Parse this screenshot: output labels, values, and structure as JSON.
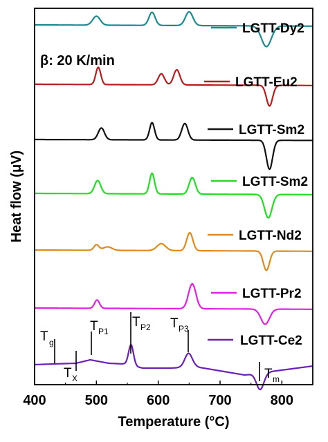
{
  "chart_data": {
    "type": "line",
    "title": "",
    "xlabel": "Temperature (°C)",
    "ylabel": "Heat flow (μV)",
    "xlim": [
      400,
      850
    ],
    "x_ticks": [
      400,
      500,
      600,
      700,
      800
    ],
    "y_ticks_shown": false,
    "grid": false,
    "legend": "inline labels at right of each curve",
    "annotation": "β: 20 K/min",
    "curve_markers": [
      {
        "label": "T",
        "sub": "g",
        "x": 432
      },
      {
        "label": "T",
        "sub": "X",
        "x": 467
      },
      {
        "label": "T",
        "sub": "P1",
        "x": 490
      },
      {
        "label": "T",
        "sub": "P2",
        "x": 555
      },
      {
        "label": "T",
        "sub": "P3",
        "x": 648
      },
      {
        "label": "T",
        "sub": "m",
        "x": 763
      }
    ],
    "series": [
      {
        "name": "LGTT-Dy2",
        "color": "#1a8a8c",
        "events": [
          {
            "x": 500,
            "h": 13,
            "w": 6
          },
          {
            "x": 590,
            "h": 19,
            "w": 5
          },
          {
            "x": 650,
            "h": 20,
            "w": 6
          },
          {
            "x": 775,
            "h": -30,
            "w": 8
          }
        ]
      },
      {
        "name": "LGTT-Eu2",
        "color": "#b81c1c",
        "events": [
          {
            "x": 503,
            "h": 25,
            "w": 4
          },
          {
            "x": 605,
            "h": 16,
            "w": 5
          },
          {
            "x": 630,
            "h": 22,
            "w": 5
          },
          {
            "x": 780,
            "h": -30,
            "w": 5
          }
        ]
      },
      {
        "name": "LGTT-Sm2",
        "color": "#111111",
        "events": [
          {
            "x": 508,
            "h": 17,
            "w": 5
          },
          {
            "x": 590,
            "h": 25,
            "w": 4
          },
          {
            "x": 643,
            "h": 24,
            "w": 5
          },
          {
            "x": 780,
            "h": -42,
            "w": 5
          }
        ]
      },
      {
        "name": "LGTT-Sm2",
        "color": "#22dd22",
        "events": [
          {
            "x": 502,
            "h": 19,
            "w": 5
          },
          {
            "x": 590,
            "h": 30,
            "w": 4
          },
          {
            "x": 655,
            "h": 24,
            "w": 5
          },
          {
            "x": 778,
            "h": -34,
            "w": 6
          }
        ]
      },
      {
        "name": "LGTT-Nd2",
        "color": "#e08a1e",
        "events": [
          {
            "x": 500,
            "h": 8,
            "w": 4
          },
          {
            "x": 518,
            "h": 5,
            "w": 7
          },
          {
            "x": 605,
            "h": 10,
            "w": 7
          },
          {
            "x": 651,
            "h": 26,
            "w": 5
          },
          {
            "x": 775,
            "h": -28,
            "w": 5
          }
        ]
      },
      {
        "name": "LGTT-Pr2",
        "color": "#e022e0",
        "events": [
          {
            "x": 501,
            "h": 12,
            "w": 4
          },
          {
            "x": 655,
            "h": 36,
            "w": 6
          },
          {
            "x": 773,
            "h": -22,
            "w": 7
          }
        ]
      },
      {
        "name": "LGTT-Ce2",
        "color": "#6a1fb5",
        "events": [
          {
            "x": 490,
            "h": 8,
            "w": 16
          },
          {
            "x": 556,
            "h": 30,
            "w": 4
          },
          {
            "x": 649,
            "h": 20,
            "w": 6
          },
          {
            "x": 765,
            "h": -24,
            "w": 6
          }
        ]
      }
    ]
  }
}
